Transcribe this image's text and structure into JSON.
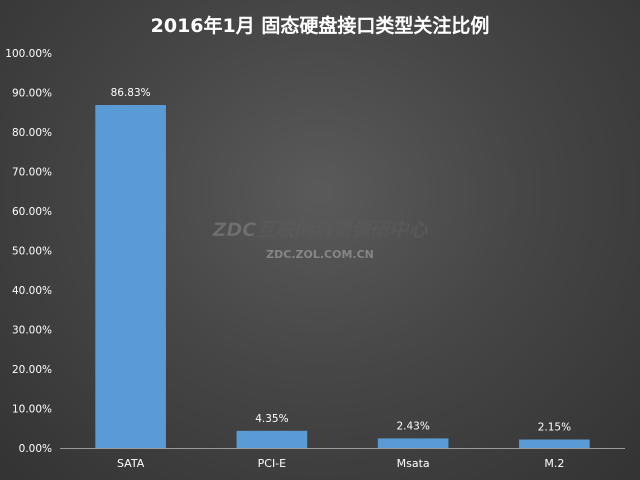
{
  "chart_data": {
    "type": "bar",
    "title": "2016年1月 固态硬盘接口类型关注比例",
    "categories": [
      "SATA",
      "PCI-E",
      "Msata",
      "M.2"
    ],
    "values": [
      86.83,
      4.35,
      2.43,
      2.15
    ],
    "value_labels": [
      "86.83%",
      "4.35%",
      "2.43%",
      "2.15%"
    ],
    "ylim": [
      0,
      100
    ],
    "yticks": [
      "0.00%",
      "10.00%",
      "20.00%",
      "30.00%",
      "40.00%",
      "50.00%",
      "60.00%",
      "70.00%",
      "80.00%",
      "90.00%",
      "100.00%"
    ],
    "grid": false,
    "legend": "none",
    "bar_color": "#5b9bd5"
  },
  "watermark": {
    "main": "ZDC互联网消费调研中心",
    "sub": "ZDC.ZOL.COM.CN"
  }
}
